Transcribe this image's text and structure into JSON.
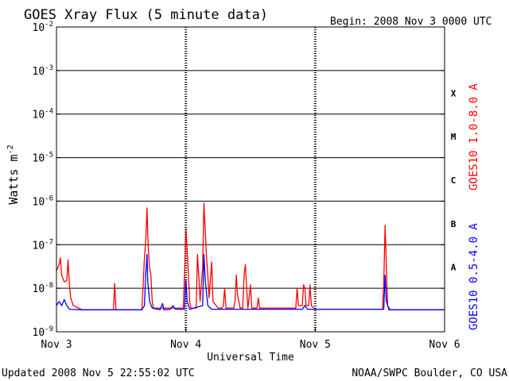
{
  "chart_data": {
    "type": "line",
    "title": "GOES Xray Flux (5 minute data)",
    "begin_label": "Begin:  2008 Nov 3 0000 UTC",
    "xlabel": "Universal Time",
    "ylabel_base": "Watts m",
    "ylabel_exp": "-2",
    "x_ticks": [
      "Nov 3",
      "Nov 4",
      "Nov 5",
      "Nov 6"
    ],
    "y_ticks": [
      {
        "base": "10",
        "exp": "-9"
      },
      {
        "base": "10",
        "exp": "-8"
      },
      {
        "base": "10",
        "exp": "-7"
      },
      {
        "base": "10",
        "exp": "-6"
      },
      {
        "base": "10",
        "exp": "-5"
      },
      {
        "base": "10",
        "exp": "-4"
      },
      {
        "base": "10",
        "exp": "-3"
      },
      {
        "base": "10",
        "exp": "-2"
      }
    ],
    "y_scale": "log",
    "ylim": [
      1e-09,
      0.01
    ],
    "xlim_days": [
      0,
      3
    ],
    "flare_classes": [
      "A",
      "B",
      "C",
      "M",
      "X"
    ],
    "series": [
      {
        "name": "GOES10 1.0-8.0 A",
        "color": "#ff0000",
        "points": [
          [
            0.0,
            2.5e-08
          ],
          [
            0.02,
            3.5e-08
          ],
          [
            0.03,
            5e-08
          ],
          [
            0.04,
            2e-08
          ],
          [
            0.06,
            1.4e-08
          ],
          [
            0.08,
            1.5e-08
          ],
          [
            0.09,
            4.5e-08
          ],
          [
            0.1,
            1.2e-08
          ],
          [
            0.11,
            6e-09
          ],
          [
            0.13,
            4e-09
          ],
          [
            0.2,
            3.2e-09
          ],
          [
            0.44,
            3.2e-09
          ],
          [
            0.45,
            1.3e-08
          ],
          [
            0.46,
            3.2e-09
          ],
          [
            0.66,
            3.2e-09
          ],
          [
            0.67,
            1.2e-08
          ],
          [
            0.68,
            5e-08
          ],
          [
            0.69,
            1.2e-07
          ],
          [
            0.7,
            7e-07
          ],
          [
            0.705,
            2e-07
          ],
          [
            0.71,
            8e-08
          ],
          [
            0.72,
            3e-08
          ],
          [
            0.73,
            2e-08
          ],
          [
            0.74,
            5e-09
          ],
          [
            0.75,
            3.5e-09
          ],
          [
            0.98,
            3.5e-09
          ],
          [
            0.99,
            2e-08
          ],
          [
            1.0,
            2.3e-07
          ],
          [
            1.01,
            8e-08
          ],
          [
            1.02,
            2e-08
          ],
          [
            1.03,
            5e-09
          ],
          [
            1.04,
            3.5e-09
          ],
          [
            1.08,
            3.5e-09
          ],
          [
            1.09,
            6e-08
          ],
          [
            1.1,
            2e-08
          ],
          [
            1.11,
            5e-09
          ],
          [
            1.13,
            3e-08
          ],
          [
            1.14,
            9e-07
          ],
          [
            1.15,
            2e-07
          ],
          [
            1.16,
            5e-08
          ],
          [
            1.17,
            2e-08
          ],
          [
            1.18,
            6e-09
          ],
          [
            1.2,
            4e-08
          ],
          [
            1.21,
            5e-09
          ],
          [
            1.25,
            3.5e-09
          ],
          [
            1.28,
            3.5e-09
          ],
          [
            1.29,
            4e-09
          ],
          [
            1.3,
            1e-08
          ],
          [
            1.31,
            3.5e-09
          ],
          [
            1.37,
            3.5e-09
          ],
          [
            1.38,
            5e-09
          ],
          [
            1.39,
            2e-08
          ],
          [
            1.4,
            7e-09
          ],
          [
            1.42,
            3.5e-09
          ],
          [
            1.44,
            3.5e-09
          ],
          [
            1.45,
            2e-08
          ],
          [
            1.46,
            3.5e-08
          ],
          [
            1.47,
            1e-08
          ],
          [
            1.48,
            3.5e-09
          ],
          [
            1.5,
            1.2e-08
          ],
          [
            1.51,
            3.5e-09
          ],
          [
            1.55,
            3.5e-09
          ],
          [
            1.56,
            6e-09
          ],
          [
            1.57,
            3.5e-09
          ],
          [
            1.85,
            3.5e-09
          ],
          [
            1.86,
            1e-08
          ],
          [
            1.87,
            4e-09
          ],
          [
            1.9,
            4e-09
          ],
          [
            1.91,
            1.2e-08
          ],
          [
            1.92,
            1e-08
          ],
          [
            1.93,
            4e-09
          ],
          [
            1.95,
            4e-09
          ],
          [
            1.96,
            1.2e-08
          ],
          [
            1.97,
            4e-09
          ],
          [
            2.0,
            3.3e-09
          ],
          [
            2.52,
            3.3e-09
          ],
          [
            2.53,
            1.2e-08
          ],
          [
            2.54,
            2.8e-07
          ],
          [
            2.55,
            3e-08
          ],
          [
            2.56,
            4e-09
          ],
          [
            2.58,
            3.2e-09
          ],
          [
            3.0,
            3.2e-09
          ]
        ]
      },
      {
        "name": "GOES10 0.5-4.0 A",
        "color": "#0000ff",
        "points": [
          [
            0.0,
            4e-09
          ],
          [
            0.02,
            5e-09
          ],
          [
            0.04,
            4e-09
          ],
          [
            0.06,
            5.5e-09
          ],
          [
            0.08,
            4e-09
          ],
          [
            0.1,
            3.3e-09
          ],
          [
            0.2,
            3.2e-09
          ],
          [
            0.66,
            3.2e-09
          ],
          [
            0.68,
            4e-09
          ],
          [
            0.69,
            2e-08
          ],
          [
            0.7,
            6e-08
          ],
          [
            0.705,
            1.5e-08
          ],
          [
            0.72,
            5e-09
          ],
          [
            0.74,
            3.5e-09
          ],
          [
            0.8,
            3.2e-09
          ],
          [
            0.82,
            4.5e-09
          ],
          [
            0.83,
            3.2e-09
          ],
          [
            0.88,
            3.3e-09
          ],
          [
            0.9,
            4e-09
          ],
          [
            0.92,
            3.3e-09
          ],
          [
            0.99,
            3.3e-09
          ],
          [
            1.0,
            1.5e-08
          ],
          [
            1.01,
            5e-09
          ],
          [
            1.03,
            3.3e-09
          ],
          [
            1.13,
            4e-09
          ],
          [
            1.14,
            6e-08
          ],
          [
            1.15,
            1.5e-08
          ],
          [
            1.17,
            4e-09
          ],
          [
            1.2,
            3.3e-09
          ],
          [
            1.9,
            3.3e-09
          ],
          [
            1.92,
            4e-09
          ],
          [
            1.94,
            3.3e-09
          ],
          [
            2.53,
            3.3e-09
          ],
          [
            2.54,
            2e-08
          ],
          [
            2.55,
            5e-09
          ],
          [
            2.57,
            3.2e-09
          ],
          [
            3.0,
            3.2e-09
          ]
        ]
      }
    ],
    "footer_left": "Updated 2008 Nov  5 22:55:02 UTC",
    "footer_right": "NOAA/SWPC Boulder, CO USA"
  }
}
